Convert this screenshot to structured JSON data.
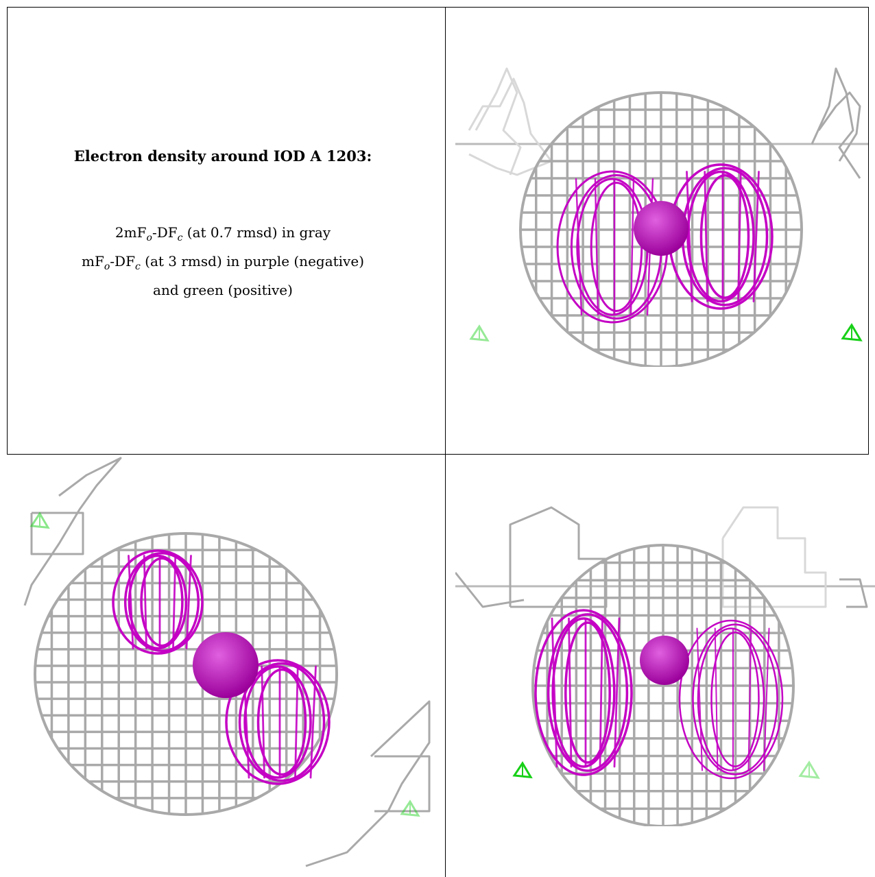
{
  "caption": {
    "title": "Electron density around IOD A 1203:",
    "line1": {
      "pre": "2mF",
      "sub1": "o",
      "mid": "-DF",
      "sub2": "c",
      "post": " (at 0.7 rmsd) in gray"
    },
    "line2": {
      "pre": "mF",
      "sub1": "o",
      "mid": "-DF",
      "sub2": "c",
      "post": " (at 3 rmsd) in purple (negative)"
    },
    "line3": "and green (positive)"
  },
  "colors": {
    "gray_mesh": "#a9a9a9",
    "gray_light": "#d8d8d8",
    "purple_mesh": "#c400c4",
    "purple_atom": "#9b009b",
    "green_mesh": "#18d018"
  }
}
